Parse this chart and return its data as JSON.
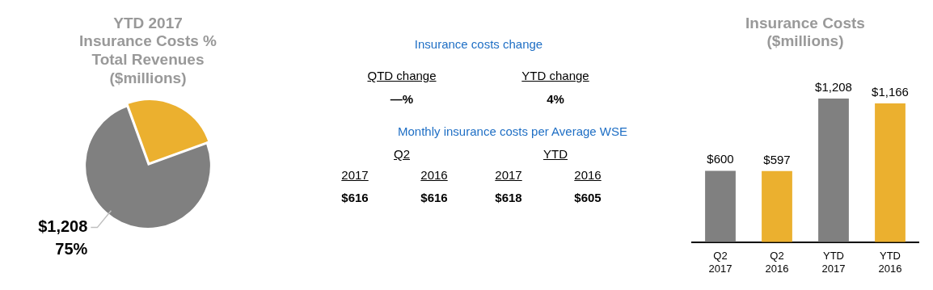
{
  "chart_data": [
    {
      "type": "pie",
      "title": "YTD 2017\nInsurance Costs %\nTotal Revenues\n($millions)",
      "categories": [
        null,
        null
      ],
      "values": [
        75,
        25
      ],
      "colors": [
        "#808080",
        "#ebb02f"
      ],
      "value_labels": [
        "75%",
        null
      ],
      "annotations": [
        "$1,208"
      ]
    },
    {
      "type": "other",
      "annotations": [
        "Insurance costs change",
        "QTD change",
        "YTD change",
        "—%",
        "4%",
        "Monthly insurance costs per Average WSE",
        "Q2",
        "YTD",
        "2017",
        "2016",
        "2017",
        "2016",
        "$616",
        "$616",
        "$618",
        "$605"
      ]
    },
    {
      "type": "bar",
      "title": "Insurance Costs\n($millions)",
      "categories": [
        "Q2\n2017",
        "Q2\n2016",
        "YTD\n2017",
        "YTD\n2016"
      ],
      "values": [
        600,
        597,
        1208,
        1166
      ],
      "colors": [
        "#808080",
        "#ebb02f",
        "#808080",
        "#ebb02f"
      ],
      "value_labels": [
        "$600",
        "$597",
        "$1,208",
        "$1,166"
      ]
    }
  ]
}
